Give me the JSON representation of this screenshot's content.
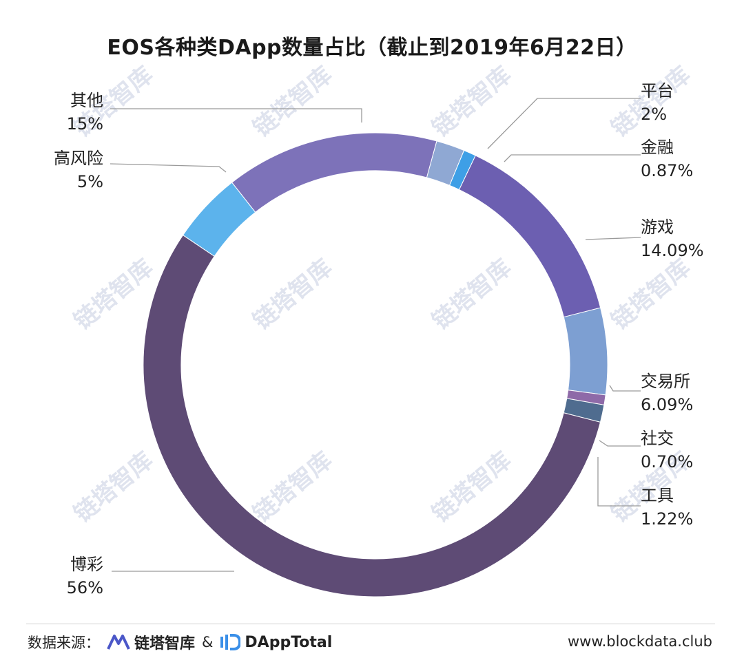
{
  "chart_data": {
    "type": "pie",
    "style": "donut",
    "title": "EOS各种类DApp数量占比（截止到2019年6月22日）",
    "slices": [
      {
        "label": "平台",
        "value": 2,
        "value_label": "2%",
        "color": "#8fa8d3"
      },
      {
        "label": "金融",
        "value": 0.87,
        "value_label": "0.87%",
        "color": "#3e9fe6"
      },
      {
        "label": "游戏",
        "value": 14.09,
        "value_label": "14.09%",
        "color": "#6c5fb1"
      },
      {
        "label": "交易所",
        "value": 6.09,
        "value_label": "6.09%",
        "color": "#7d9fd2"
      },
      {
        "label": "社交",
        "value": 0.7,
        "value_label": "0.70%",
        "color": "#8e6aa8"
      },
      {
        "label": "工具",
        "value": 1.22,
        "value_label": "1.22%",
        "color": "#4f6c8f"
      },
      {
        "label": "博彩",
        "value": 56,
        "value_label": "56%",
        "color": "#5e4b75"
      },
      {
        "label": "高风险",
        "value": 5,
        "value_label": "5%",
        "color": "#5cb3ec"
      },
      {
        "label": "其他",
        "value": 15,
        "value_label": "15%",
        "color": "#7d72b9"
      }
    ]
  },
  "footer": {
    "source_label": "数据来源：",
    "brand1": "链塔智库",
    "amp": "&",
    "brand2": "DAppTotal",
    "website": "www.blockdata.club"
  },
  "watermark": {
    "text": "链塔智库"
  }
}
